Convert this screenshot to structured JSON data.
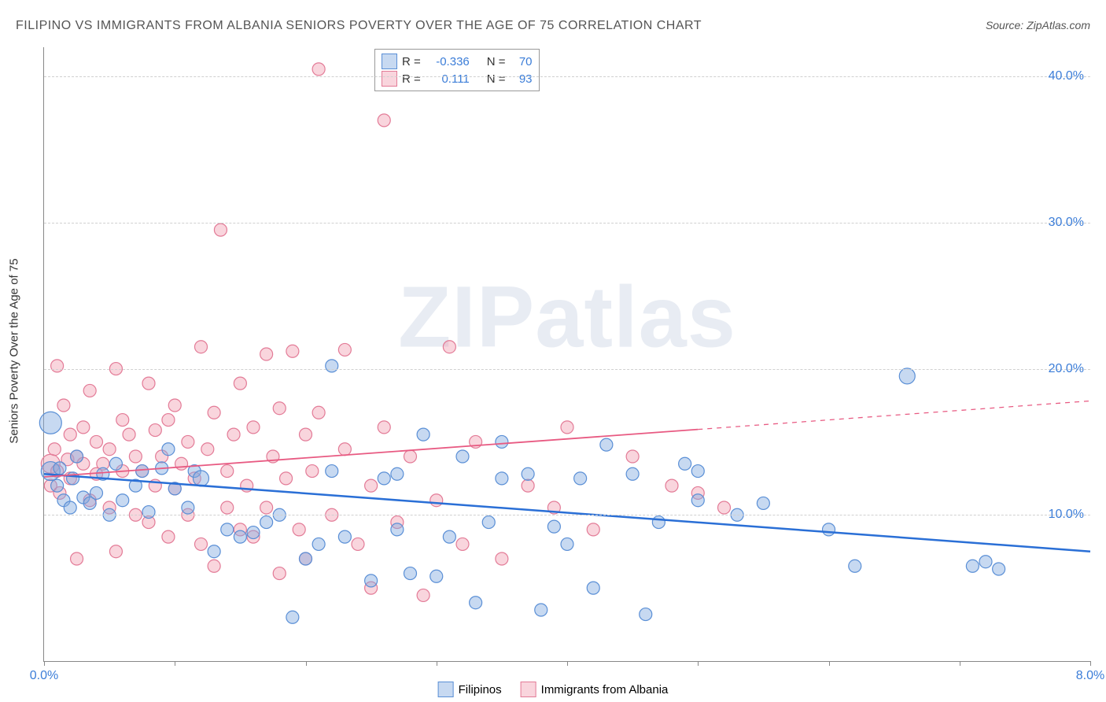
{
  "title": "FILIPINO VS IMMIGRANTS FROM ALBANIA SENIORS POVERTY OVER THE AGE OF 75 CORRELATION CHART",
  "source": "Source: ZipAtlas.com",
  "y_axis_label": "Seniors Poverty Over the Age of 75",
  "watermark_a": "ZIP",
  "watermark_b": "atlas",
  "chart": {
    "type": "scatter",
    "xlim": [
      0.0,
      8.0
    ],
    "ylim": [
      0.0,
      42.0
    ],
    "x_ticks": [
      0.0,
      1.0,
      2.0,
      3.0,
      4.0,
      5.0,
      6.0,
      7.0,
      8.0
    ],
    "x_tick_labels": {
      "0": "0.0%",
      "8": "8.0%"
    },
    "y_gridlines": [
      10.0,
      20.0,
      30.0,
      40.0
    ],
    "y_tick_labels": {
      "10": "10.0%",
      "20": "20.0%",
      "30": "30.0%",
      "40": "40.0%"
    },
    "background_color": "#ffffff",
    "grid_color": "#d0d0d0",
    "axis_color": "#888888",
    "tick_label_color": "#3b7dd8",
    "series": [
      {
        "name": "Filipinos",
        "fill": "rgba(130,170,225,0.45)",
        "stroke": "#5a8fd6",
        "r_value": "-0.336",
        "n_value": "70",
        "trend": {
          "x1": 0.0,
          "y1": 12.8,
          "x2": 8.0,
          "y2": 7.5,
          "x_solid_end": 8.0,
          "color": "#2a6fd6",
          "width": 2.5
        },
        "points": [
          [
            0.05,
            13.0,
            12
          ],
          [
            0.05,
            16.3,
            14
          ],
          [
            0.1,
            12.0,
            8
          ],
          [
            0.12,
            13.2,
            8
          ],
          [
            0.15,
            11.0,
            8
          ],
          [
            0.2,
            10.5,
            8
          ],
          [
            0.22,
            12.5,
            8
          ],
          [
            0.25,
            14.0,
            8
          ],
          [
            0.3,
            11.2,
            8
          ],
          [
            0.35,
            10.8,
            8
          ],
          [
            0.4,
            11.5,
            8
          ],
          [
            0.45,
            12.8,
            8
          ],
          [
            0.5,
            10.0,
            8
          ],
          [
            0.55,
            13.5,
            8
          ],
          [
            0.6,
            11.0,
            8
          ],
          [
            0.7,
            12.0,
            8
          ],
          [
            0.75,
            13.0,
            8
          ],
          [
            0.8,
            10.2,
            8
          ],
          [
            0.9,
            13.2,
            8
          ],
          [
            0.95,
            14.5,
            8
          ],
          [
            1.0,
            11.8,
            8
          ],
          [
            1.1,
            10.5,
            8
          ],
          [
            1.15,
            13.0,
            8
          ],
          [
            1.2,
            12.5,
            10
          ],
          [
            1.3,
            7.5,
            8
          ],
          [
            1.4,
            9.0,
            8
          ],
          [
            1.5,
            8.5,
            8
          ],
          [
            1.6,
            8.8,
            8
          ],
          [
            1.7,
            9.5,
            8
          ],
          [
            1.8,
            10.0,
            8
          ],
          [
            1.9,
            3.0,
            8
          ],
          [
            2.0,
            7.0,
            8
          ],
          [
            2.1,
            8.0,
            8
          ],
          [
            2.2,
            13.0,
            8
          ],
          [
            2.2,
            20.2,
            8
          ],
          [
            2.3,
            8.5,
            8
          ],
          [
            2.5,
            5.5,
            8
          ],
          [
            2.6,
            12.5,
            8
          ],
          [
            2.7,
            9.0,
            8
          ],
          [
            2.7,
            12.8,
            8
          ],
          [
            2.8,
            6.0,
            8
          ],
          [
            2.9,
            15.5,
            8
          ],
          [
            3.0,
            5.8,
            8
          ],
          [
            3.1,
            8.5,
            8
          ],
          [
            3.2,
            14.0,
            8
          ],
          [
            3.3,
            4.0,
            8
          ],
          [
            3.4,
            9.5,
            8
          ],
          [
            3.5,
            12.5,
            8
          ],
          [
            3.5,
            15.0,
            8
          ],
          [
            3.7,
            12.8,
            8
          ],
          [
            3.8,
            3.5,
            8
          ],
          [
            3.9,
            9.2,
            8
          ],
          [
            4.0,
            8.0,
            8
          ],
          [
            4.1,
            12.5,
            8
          ],
          [
            4.2,
            5.0,
            8
          ],
          [
            4.3,
            14.8,
            8
          ],
          [
            4.5,
            12.8,
            8
          ],
          [
            4.6,
            3.2,
            8
          ],
          [
            4.7,
            9.5,
            8
          ],
          [
            4.9,
            13.5,
            8
          ],
          [
            5.0,
            11.0,
            8
          ],
          [
            5.0,
            13.0,
            8
          ],
          [
            5.3,
            10.0,
            8
          ],
          [
            5.5,
            10.8,
            8
          ],
          [
            6.0,
            9.0,
            8
          ],
          [
            6.2,
            6.5,
            8
          ],
          [
            6.6,
            19.5,
            10
          ],
          [
            7.1,
            6.5,
            8
          ],
          [
            7.2,
            6.8,
            8
          ],
          [
            7.3,
            6.3,
            8
          ]
        ]
      },
      {
        "name": "Immigrants from Albania",
        "fill": "rgba(240,150,170,0.40)",
        "stroke": "#e37b97",
        "r_value": "0.111",
        "n_value": "93",
        "trend": {
          "x1": 0.0,
          "y1": 12.6,
          "x2": 8.0,
          "y2": 17.8,
          "x_solid_end": 5.0,
          "color": "#e85a82",
          "width": 1.8
        },
        "points": [
          [
            0.05,
            13.5,
            12
          ],
          [
            0.05,
            12.0,
            8
          ],
          [
            0.08,
            14.5,
            8
          ],
          [
            0.1,
            13.0,
            8
          ],
          [
            0.1,
            20.2,
            8
          ],
          [
            0.12,
            11.5,
            8
          ],
          [
            0.15,
            17.5,
            8
          ],
          [
            0.18,
            13.8,
            8
          ],
          [
            0.2,
            12.5,
            8
          ],
          [
            0.2,
            15.5,
            8
          ],
          [
            0.25,
            14.0,
            8
          ],
          [
            0.25,
            7.0,
            8
          ],
          [
            0.3,
            13.5,
            8
          ],
          [
            0.3,
            16.0,
            8
          ],
          [
            0.35,
            11.0,
            8
          ],
          [
            0.35,
            18.5,
            8
          ],
          [
            0.4,
            12.8,
            8
          ],
          [
            0.4,
            15.0,
            8
          ],
          [
            0.45,
            13.5,
            8
          ],
          [
            0.5,
            14.5,
            8
          ],
          [
            0.5,
            10.5,
            8
          ],
          [
            0.55,
            7.5,
            8
          ],
          [
            0.55,
            20.0,
            8
          ],
          [
            0.6,
            13.0,
            8
          ],
          [
            0.6,
            16.5,
            8
          ],
          [
            0.65,
            15.5,
            8
          ],
          [
            0.7,
            14.0,
            8
          ],
          [
            0.7,
            10.0,
            8
          ],
          [
            0.75,
            13.0,
            8
          ],
          [
            0.8,
            19.0,
            8
          ],
          [
            0.8,
            9.5,
            8
          ],
          [
            0.85,
            12.0,
            8
          ],
          [
            0.85,
            15.8,
            8
          ],
          [
            0.9,
            14.0,
            8
          ],
          [
            0.95,
            8.5,
            8
          ],
          [
            0.95,
            16.5,
            8
          ],
          [
            1.0,
            17.5,
            8
          ],
          [
            1.0,
            11.8,
            8
          ],
          [
            1.05,
            13.5,
            8
          ],
          [
            1.1,
            10.0,
            8
          ],
          [
            1.1,
            15.0,
            8
          ],
          [
            1.15,
            12.5,
            8
          ],
          [
            1.2,
            21.5,
            8
          ],
          [
            1.2,
            8.0,
            8
          ],
          [
            1.25,
            14.5,
            8
          ],
          [
            1.3,
            17.0,
            8
          ],
          [
            1.3,
            6.5,
            8
          ],
          [
            1.35,
            29.5,
            8
          ],
          [
            1.4,
            13.0,
            8
          ],
          [
            1.4,
            10.5,
            8
          ],
          [
            1.45,
            15.5,
            8
          ],
          [
            1.5,
            19.0,
            8
          ],
          [
            1.5,
            9.0,
            8
          ],
          [
            1.55,
            12.0,
            8
          ],
          [
            1.6,
            16.0,
            8
          ],
          [
            1.6,
            8.5,
            8
          ],
          [
            1.7,
            21.0,
            8
          ],
          [
            1.7,
            10.5,
            8
          ],
          [
            1.75,
            14.0,
            8
          ],
          [
            1.8,
            17.3,
            8
          ],
          [
            1.8,
            6.0,
            8
          ],
          [
            1.85,
            12.5,
            8
          ],
          [
            1.9,
            21.2,
            8
          ],
          [
            1.95,
            9.0,
            8
          ],
          [
            2.0,
            15.5,
            8
          ],
          [
            2.0,
            7.0,
            8
          ],
          [
            2.05,
            13.0,
            8
          ],
          [
            2.1,
            17.0,
            8
          ],
          [
            2.1,
            40.5,
            8
          ],
          [
            2.2,
            10.0,
            8
          ],
          [
            2.3,
            14.5,
            8
          ],
          [
            2.3,
            21.3,
            8
          ],
          [
            2.4,
            8.0,
            8
          ],
          [
            2.5,
            12.0,
            8
          ],
          [
            2.5,
            5.0,
            8
          ],
          [
            2.6,
            16.0,
            8
          ],
          [
            2.6,
            37.0,
            8
          ],
          [
            2.7,
            9.5,
            8
          ],
          [
            2.8,
            14.0,
            8
          ],
          [
            2.9,
            4.5,
            8
          ],
          [
            3.0,
            11.0,
            8
          ],
          [
            3.1,
            21.5,
            8
          ],
          [
            3.2,
            8.0,
            8
          ],
          [
            3.3,
            15.0,
            8
          ],
          [
            3.5,
            7.0,
            8
          ],
          [
            3.7,
            12.0,
            8
          ],
          [
            3.9,
            10.5,
            8
          ],
          [
            4.0,
            16.0,
            8
          ],
          [
            4.2,
            9.0,
            8
          ],
          [
            4.5,
            14.0,
            8
          ],
          [
            4.8,
            12.0,
            8
          ],
          [
            5.0,
            11.5,
            8
          ],
          [
            5.2,
            10.5,
            8
          ]
        ]
      }
    ]
  },
  "stats_legend": {
    "r_label": "R =",
    "n_label": "N ="
  },
  "bottom_legend": {
    "series1": "Filipinos",
    "series2": "Immigrants from Albania"
  }
}
